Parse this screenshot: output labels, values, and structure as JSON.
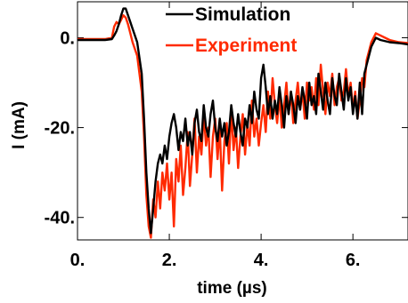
{
  "chart_data": {
    "type": "line",
    "xlabel": "time (µs)",
    "ylabel": "I (mA)",
    "xlim": [
      0,
      7.2
    ],
    "ylim": [
      -45,
      8
    ],
    "x_ticks": [
      {
        "value": 0,
        "label": "0."
      },
      {
        "value": 2,
        "label": "2."
      },
      {
        "value": 4,
        "label": "4."
      },
      {
        "value": 6,
        "label": "6."
      }
    ],
    "y_ticks": [
      {
        "value": 0,
        "label": "0."
      },
      {
        "value": -20,
        "label": "-20."
      },
      {
        "value": -40,
        "label": "-40."
      }
    ],
    "grid": false,
    "legend_position": "top-right",
    "series": [
      {
        "name": "Simulation",
        "color": "#000000",
        "x": [
          0.0,
          0.3,
          0.6,
          0.75,
          0.8,
          0.85,
          0.9,
          0.95,
          1.0,
          1.05,
          1.1,
          1.15,
          1.2,
          1.3,
          1.4,
          1.45,
          1.5,
          1.55,
          1.6,
          1.65,
          1.7,
          1.75,
          1.8,
          1.85,
          1.9,
          1.95,
          2.0,
          2.05,
          2.1,
          2.15,
          2.2,
          2.25,
          2.3,
          2.35,
          2.4,
          2.45,
          2.5,
          2.55,
          2.6,
          2.65,
          2.7,
          2.75,
          2.8,
          2.85,
          2.9,
          2.95,
          3.0,
          3.05,
          3.1,
          3.15,
          3.2,
          3.25,
          3.3,
          3.35,
          3.4,
          3.45,
          3.5,
          3.55,
          3.6,
          3.65,
          3.7,
          3.75,
          3.8,
          3.85,
          3.9,
          3.95,
          4.0,
          4.05,
          4.1,
          4.15,
          4.2,
          4.25,
          4.3,
          4.35,
          4.4,
          4.45,
          4.5,
          4.55,
          4.6,
          4.65,
          4.7,
          4.75,
          4.8,
          4.85,
          4.9,
          4.95,
          5.0,
          5.05,
          5.1,
          5.15,
          5.2,
          5.25,
          5.3,
          5.35,
          5.4,
          5.45,
          5.5,
          5.55,
          5.6,
          5.65,
          5.7,
          5.75,
          5.8,
          5.85,
          5.9,
          5.95,
          6.0,
          6.05,
          6.1,
          6.15,
          6.2,
          6.25,
          6.3,
          6.4,
          6.5,
          6.6,
          6.8,
          7.0,
          7.2
        ],
        "y": [
          -0.5,
          -0.5,
          -0.5,
          -0.3,
          0.5,
          1.5,
          3.0,
          5.0,
          6.5,
          6.5,
          5.0,
          3.5,
          2.0,
          -1.0,
          -8.0,
          -18.0,
          -30.0,
          -38.0,
          -43.5,
          -38.0,
          -32.0,
          -28.0,
          -26.0,
          -28.0,
          -24.0,
          -27.0,
          -22.0,
          -19.0,
          -17.0,
          -20.0,
          -25.0,
          -21.0,
          -23.0,
          -18.0,
          -24.0,
          -21.0,
          -26.0,
          -19.0,
          -16.0,
          -21.0,
          -23.0,
          -15.0,
          -20.0,
          -22.0,
          -17.0,
          -14.0,
          -20.0,
          -23.0,
          -18.0,
          -22.0,
          -19.0,
          -24.0,
          -21.0,
          -15.0,
          -19.0,
          -22.0,
          -17.0,
          -21.0,
          -24.0,
          -18.0,
          -20.0,
          -15.0,
          -19.0,
          -12.0,
          -16.0,
          -18.0,
          -9.0,
          -6.0,
          -11.0,
          -17.0,
          -13.0,
          -18.0,
          -14.0,
          -17.0,
          -11.0,
          -15.0,
          -20.0,
          -13.0,
          -17.0,
          -12.0,
          -15.0,
          -19.0,
          -13.0,
          -16.0,
          -11.0,
          -14.0,
          -18.0,
          -10.0,
          -15.0,
          -13.0,
          -17.0,
          -8.0,
          -12.0,
          -16.0,
          -10.0,
          -14.0,
          -17.0,
          -9.0,
          -13.0,
          -15.0,
          -8.0,
          -12.0,
          -16.0,
          -9.0,
          -14.0,
          -11.0,
          -17.0,
          -13.0,
          -18.0,
          -10.0,
          -17.0,
          -8.0,
          -6.0,
          -2.0,
          0.0,
          -0.5,
          -1.0,
          -1.2,
          -1.5
        ]
      },
      {
        "name": "Experiment",
        "color": "#ff2a00",
        "x": [
          0.0,
          0.3,
          0.6,
          0.75,
          0.8,
          0.85,
          0.9,
          0.95,
          1.0,
          1.05,
          1.1,
          1.15,
          1.2,
          1.3,
          1.4,
          1.45,
          1.5,
          1.55,
          1.6,
          1.65,
          1.7,
          1.75,
          1.8,
          1.85,
          1.9,
          1.95,
          2.0,
          2.05,
          2.1,
          2.15,
          2.2,
          2.25,
          2.3,
          2.35,
          2.4,
          2.45,
          2.5,
          2.55,
          2.6,
          2.65,
          2.7,
          2.75,
          2.8,
          2.85,
          2.9,
          2.95,
          3.0,
          3.05,
          3.1,
          3.15,
          3.2,
          3.25,
          3.3,
          3.35,
          3.4,
          3.45,
          3.5,
          3.55,
          3.6,
          3.65,
          3.7,
          3.75,
          3.8,
          3.85,
          3.9,
          3.95,
          4.0,
          4.05,
          4.1,
          4.15,
          4.2,
          4.25,
          4.3,
          4.35,
          4.4,
          4.45,
          4.5,
          4.55,
          4.6,
          4.65,
          4.7,
          4.75,
          4.8,
          4.85,
          4.9,
          4.95,
          5.0,
          5.05,
          5.1,
          5.15,
          5.2,
          5.25,
          5.3,
          5.35,
          5.4,
          5.45,
          5.5,
          5.55,
          5.6,
          5.65,
          5.7,
          5.75,
          5.8,
          5.85,
          5.9,
          5.95,
          6.0,
          6.05,
          6.1,
          6.15,
          6.2,
          6.25,
          6.3,
          6.4,
          6.5,
          6.6,
          6.8,
          7.0,
          7.2
        ],
        "y": [
          -0.3,
          -0.3,
          -0.3,
          0.0,
          2.5,
          3.5,
          3.0,
          4.0,
          5.0,
          4.5,
          3.0,
          1.0,
          -1.0,
          -4.0,
          -12.0,
          -22.0,
          -35.0,
          -42.0,
          -44.5,
          -36.0,
          -40.0,
          -32.0,
          -38.0,
          -30.0,
          -34.0,
          -28.0,
          -36.0,
          -30.0,
          -42.0,
          -27.0,
          -32.0,
          -24.0,
          -35.0,
          -29.0,
          -21.0,
          -33.0,
          -26.0,
          -18.0,
          -30.0,
          -22.0,
          -26.0,
          -17.0,
          -24.0,
          -20.0,
          -31.0,
          -22.0,
          -18.0,
          -27.0,
          -20.0,
          -34.0,
          -23.0,
          -19.0,
          -28.0,
          -16.0,
          -25.0,
          -20.0,
          -29.0,
          -22.0,
          -17.0,
          -26.0,
          -19.0,
          -24.0,
          -14.0,
          -22.0,
          -18.0,
          -24.0,
          -19.0,
          -15.0,
          -21.0,
          -12.0,
          -18.0,
          -9.0,
          -15.0,
          -19.0,
          -13.0,
          -20.0,
          -15.0,
          -10.0,
          -17.0,
          -12.0,
          -19.0,
          -14.0,
          -10.0,
          -16.0,
          -12.0,
          -18.0,
          -10.0,
          -14.0,
          -11.0,
          -16.0,
          -9.0,
          -15.0,
          -6.0,
          -12.0,
          -17.0,
          -10.0,
          -13.0,
          -8.0,
          -15.0,
          -11.0,
          -9.0,
          -14.0,
          -12.0,
          -7.0,
          -13.0,
          -10.0,
          -16.0,
          -12.0,
          -18.0,
          -14.0,
          -9.0,
          -11.0,
          -5.0,
          -1.0,
          1.0,
          0.5,
          -0.5,
          -1.0,
          -1.2
        ]
      }
    ]
  }
}
